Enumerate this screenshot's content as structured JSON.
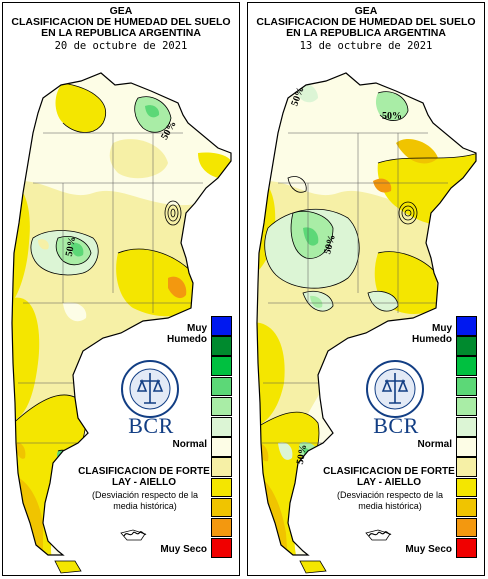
{
  "legend": {
    "muy_humedo": "Muy Humedo",
    "normal": "Normal",
    "muy_seco": "Muy Seco",
    "colors": [
      "#0018f0",
      "#008a2e",
      "#00c040",
      "#5cd877",
      "#a9eda6",
      "#dcf5d5",
      "#fdfde6",
      "#f6f0a6",
      "#f4e600",
      "#f0c400",
      "#f3980f",
      "#f00000"
    ]
  },
  "bcr": "BCR",
  "clasificacion": "CLASIFICACION DE FORTE LAY - AIELLO",
  "desviacion": "(Desviación respecto de la media histórica)",
  "seal_icon": "bolsa-de-comercio-de-rosario-seal-icon",
  "panels": [
    {
      "gea": "GEA",
      "title1": "CLASIFICACION DE HUMEDAD DEL SUELO",
      "title2": "EN LA REPUBLICA ARGENTINA",
      "date": "20 de octubre de 2021",
      "tags": [
        "50%",
        "50%"
      ]
    },
    {
      "gea": "GEA",
      "title1": "CLASIFICACION DE HUMEDAD DEL SUELO",
      "title2": "EN LA REPUBLICA ARGENTINA",
      "date": "13 de octubre de 2021",
      "tags": [
        "50%",
        "50%",
        "50%",
        "50%"
      ]
    }
  ]
}
